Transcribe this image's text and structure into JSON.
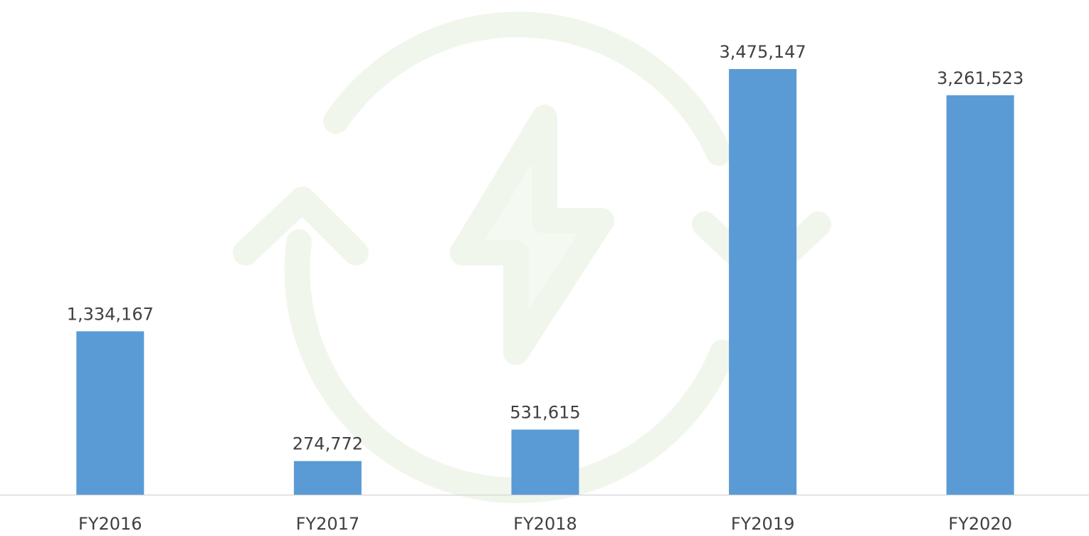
{
  "chart_data": {
    "type": "bar",
    "categories": [
      "FY2016",
      "FY2017",
      "FY2018",
      "FY2019",
      "FY2020"
    ],
    "values": [
      1334167,
      274772,
      531615,
      3475147,
      3261523
    ],
    "value_labels": [
      "1,334,167",
      "274,772",
      "531,615",
      "3,475,147",
      "3,261,523"
    ],
    "color": "#5b9bd5"
  }
}
